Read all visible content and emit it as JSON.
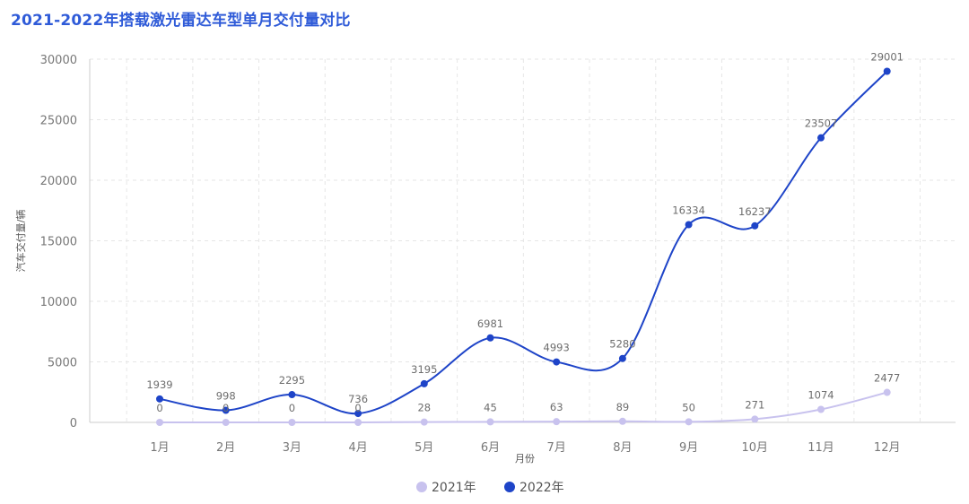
{
  "title": "2021-2022年搭载激光雷达车型单月交付量对比",
  "chart_data": {
    "type": "line",
    "title": "2021-2022年搭载激光雷达车型单月交付量对比",
    "xlabel": "月份",
    "ylabel": "汽车交付量/辆",
    "categories": [
      "1月",
      "2月",
      "3月",
      "4月",
      "5月",
      "6月",
      "7月",
      "8月",
      "9月",
      "10月",
      "11月",
      "12月"
    ],
    "yticks": [
      0,
      5000,
      10000,
      15000,
      20000,
      25000,
      30000
    ],
    "ylim": [
      0,
      30000
    ],
    "grid": true,
    "smooth": true,
    "legend_position": "bottom",
    "series": [
      {
        "name": "2021年",
        "color": "#c8c2ee",
        "values": [
          0,
          0,
          0,
          0,
          28,
          45,
          63,
          89,
          50,
          271,
          1074,
          2477
        ]
      },
      {
        "name": "2022年",
        "color": "#1e44c8",
        "values": [
          1939,
          998,
          2295,
          736,
          3195,
          6981,
          4993,
          5280,
          16334,
          16237,
          23507,
          29001
        ]
      }
    ]
  }
}
